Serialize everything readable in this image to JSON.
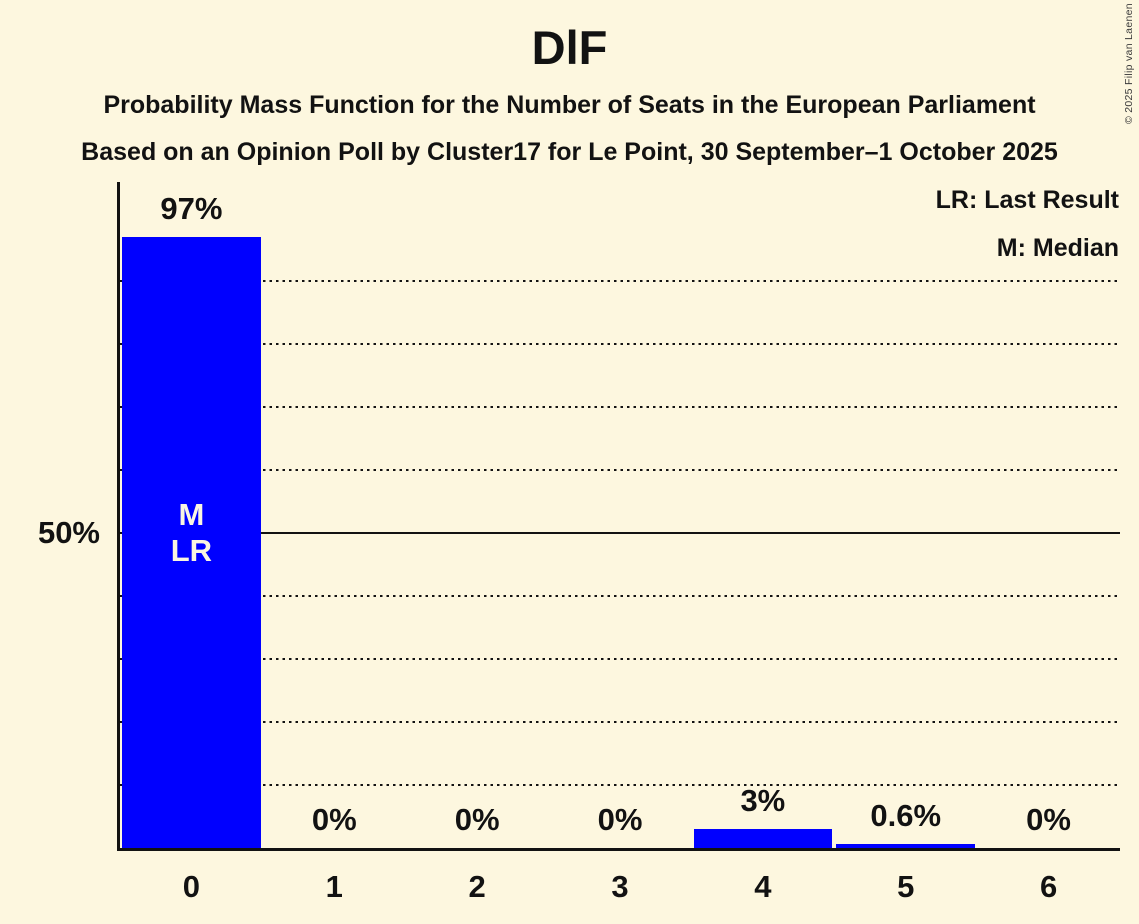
{
  "header": {
    "title": "DlF",
    "subtitle_line1": "Probability Mass Function for the Number of Seats in the European Parliament",
    "subtitle_line2": "Based on an Opinion Poll by Cluster17 for Le Point, 30 September–1 October 2025"
  },
  "legend": {
    "last_result": "LR: Last Result",
    "median": "M: Median"
  },
  "copyright": "© 2025 Filip van Laenen",
  "colors": {
    "background": "#FDF7DF",
    "bar": "#0000FF",
    "text": "#121212",
    "grid": "#121212",
    "bar_text": "#FAF5E1"
  },
  "y_axis": {
    "labels": [
      {
        "percent": 50,
        "text": "50%"
      }
    ]
  },
  "chart_data": {
    "type": "bar",
    "title": "DlF",
    "categories": [
      "0",
      "1",
      "2",
      "3",
      "4",
      "5",
      "6"
    ],
    "values": [
      97,
      0,
      0,
      0,
      3,
      0.6,
      0
    ],
    "value_labels": [
      "97%",
      "0%",
      "0%",
      "0%",
      "3%",
      "0.6%",
      "0%"
    ],
    "bar_annotations": [
      [
        "M",
        "LR"
      ],
      [],
      [],
      [],
      [],
      [],
      []
    ],
    "annotation_meanings": {
      "M": "Median",
      "LR": "Last Result"
    },
    "xlabel": "",
    "ylabel": "",
    "ylim": [
      0,
      100
    ],
    "grid": {
      "dotted_percent": [
        10,
        20,
        30,
        40,
        60,
        70,
        80,
        90
      ],
      "solid_percent": [
        50
      ]
    },
    "legend_position": "top-right",
    "bar_color": "#0000FF"
  }
}
